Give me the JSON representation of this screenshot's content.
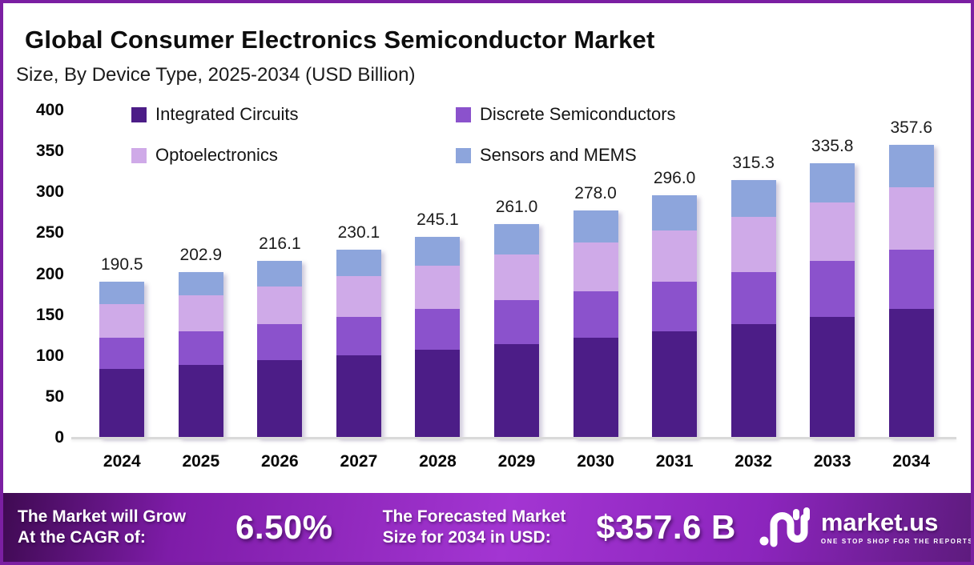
{
  "header": {
    "title": "Global Consumer Electronics Semiconductor Market",
    "subtitle": "Size, By Device Type, 2025-2034 (USD Billion)"
  },
  "chart_data": {
    "type": "bar",
    "stacked": true,
    "title": "Global Consumer Electronics Semiconductor Market Size, By Device Type, 2025-2034 (USD Billion)",
    "categories": [
      "2024",
      "2025",
      "2026",
      "2027",
      "2028",
      "2029",
      "2030",
      "2031",
      "2032",
      "2033",
      "2034"
    ],
    "series": [
      {
        "name": "Integrated Circuits",
        "color": "#4c1d87",
        "values": [
          83.8,
          89.3,
          95.1,
          101.2,
          107.8,
          114.8,
          122.3,
          130.2,
          138.7,
          147.8,
          157.3
        ]
      },
      {
        "name": "Discrete Semiconductors",
        "color": "#8b52cc",
        "values": [
          38.7,
          41.2,
          43.9,
          46.7,
          49.8,
          53.0,
          56.4,
          60.1,
          64.0,
          68.2,
          72.6
        ]
      },
      {
        "name": "Optoelectronics",
        "color": "#cfaae8",
        "values": [
          40.8,
          43.4,
          46.2,
          49.2,
          52.5,
          55.9,
          59.5,
          63.3,
          67.5,
          71.9,
          76.5
        ]
      },
      {
        "name": "Sensors and MEMS",
        "color": "#8da5dc",
        "values": [
          27.2,
          29.0,
          30.9,
          33.0,
          35.0,
          37.3,
          39.8,
          42.4,
          45.1,
          47.9,
          51.2
        ]
      }
    ],
    "totals": [
      190.5,
      202.9,
      216.1,
      230.1,
      245.1,
      261.0,
      278.0,
      296.0,
      315.3,
      335.8,
      357.6
    ],
    "total_labels": [
      "190.5",
      "202.9",
      "216.1",
      "230.1",
      "245.1",
      "261.0",
      "278.0",
      "296.0",
      "315.3",
      "335.8",
      "357.6"
    ],
    "xlabel": "",
    "ylabel": "",
    "ylim": [
      0,
      400
    ],
    "yticks": [
      400,
      350,
      300,
      250,
      200,
      150,
      100,
      50,
      0
    ],
    "grid": false,
    "legend_position": "top"
  },
  "footer": {
    "cagr_label_line1": "The Market will Grow",
    "cagr_label_line2": "At the CAGR of:",
    "cagr_value": "6.50%",
    "forecast_label_line1": "The Forecasted Market",
    "forecast_label_line2": "Size for 2034 in USD:",
    "forecast_value": "$357.6 B",
    "logo": {
      "icon": "market-us-curves-icon",
      "text": "market.us",
      "tagline": "ONE STOP SHOP FOR THE REPORTS"
    }
  },
  "colors": {
    "border": "#7b1fa2",
    "axis_line": "#d9d9d9",
    "banner_dark": "#3f0a52",
    "banner_bright": "#a335d2",
    "banner_right": "#5e1b7e",
    "text": "#0d0d0d"
  }
}
